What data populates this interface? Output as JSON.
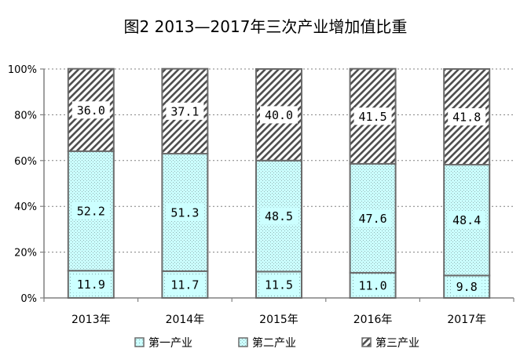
{
  "chart_data": {
    "type": "bar",
    "stacked": true,
    "title": "图2 2013—2017年三次产业增加值比重",
    "categories": [
      "2013年",
      "2014年",
      "2015年",
      "2016年",
      "2017年"
    ],
    "series": [
      {
        "name": "第一产业",
        "values": [
          11.9,
          11.7,
          11.5,
          11.0,
          9.8
        ],
        "labels": [
          "11.9",
          "11.7",
          "11.5",
          "11.0",
          "9.8"
        ],
        "fill": "#ccffff",
        "pattern": "dots"
      },
      {
        "name": "第二产业",
        "values": [
          52.2,
          51.3,
          48.5,
          47.6,
          48.4
        ],
        "labels": [
          "52.2",
          "51.3",
          "48.5",
          "47.6",
          "48.4"
        ],
        "fill": "#ccffff",
        "pattern": "fine-dots"
      },
      {
        "name": "第三产业",
        "values": [
          36.0,
          37.1,
          40.0,
          41.5,
          41.8
        ],
        "labels": [
          "36.0",
          "37.1",
          "40.0",
          "41.5",
          "41.8"
        ],
        "fill": "#ffffff",
        "pattern": "hatch"
      }
    ],
    "yticks": [
      "0%",
      "20%",
      "40%",
      "60%",
      "80%",
      "100%"
    ],
    "ylim": [
      0,
      100
    ],
    "grid": true,
    "legend": "bottom"
  }
}
